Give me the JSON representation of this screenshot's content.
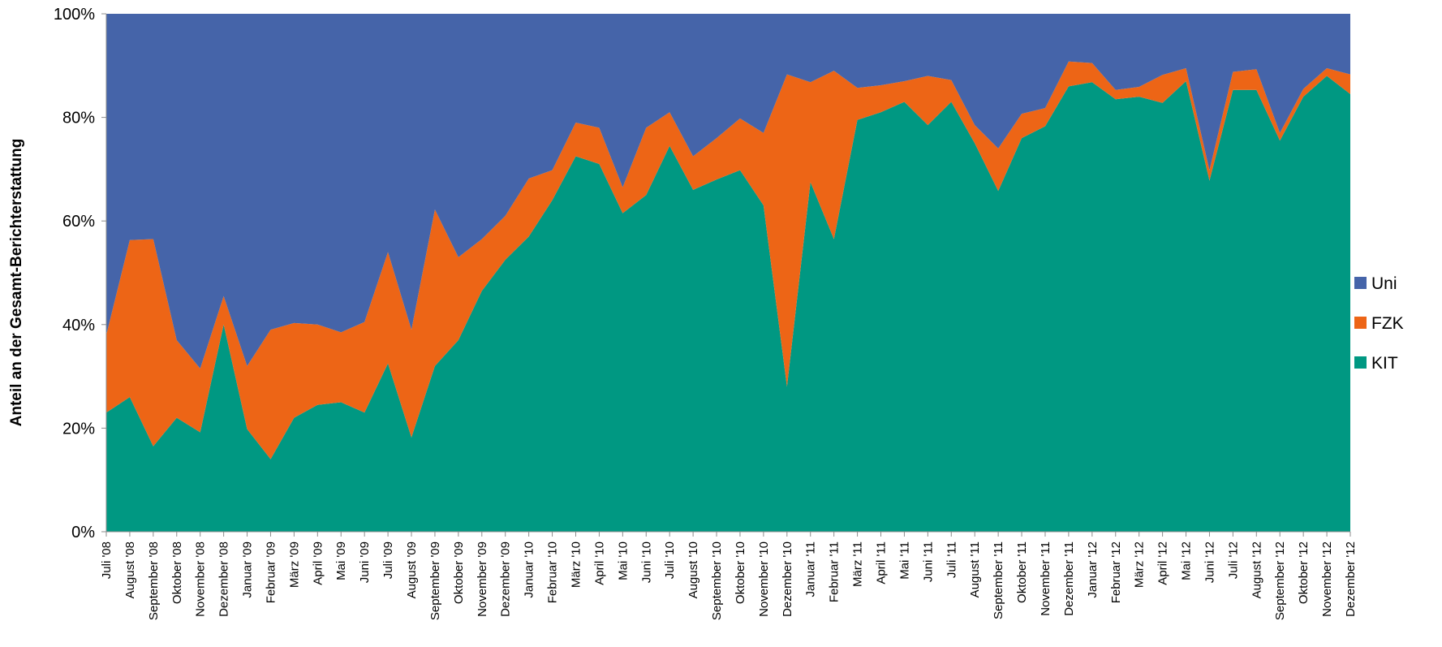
{
  "chart_data": {
    "type": "area",
    "stacked": "percent",
    "title": "",
    "xlabel": "",
    "ylabel": "Anteil an der Gesamt-Berichterstattung",
    "ylim": [
      0,
      100
    ],
    "yticks": [
      "0%",
      "20%",
      "40%",
      "60%",
      "80%",
      "100%"
    ],
    "legend_position": "right",
    "categories": [
      "Juli '08",
      "August '08",
      "September '08",
      "Oktober '08",
      "November '08",
      "Dezember '08",
      "Januar '09",
      "Februar '09",
      "März '09",
      "April '09",
      "Mai '09",
      "Juni '09",
      "Juli '09",
      "August '09",
      "September '09",
      "Oktober '09",
      "November '09",
      "Dezember '09",
      "Januar '10",
      "Februar '10",
      "März '10",
      "April '10",
      "Mai '10",
      "Juni '10",
      "Juli '10",
      "August '10",
      "September '10",
      "Oktober '10",
      "November '10",
      "Dezember '10",
      "Januar '11",
      "Februar '11",
      "März '11",
      "April '11",
      "Mai '11",
      "Juni '11",
      "Juli '11",
      "August '11",
      "September '11",
      "Oktober '11",
      "November '11",
      "Dezember '11",
      "Januar '12",
      "Februar '12",
      "März '12",
      "April '12",
      "Mai '12",
      "Juni '12",
      "Juli '12",
      "August '12",
      "September '12",
      "Oktober '12",
      "November '12",
      "Dezember '12"
    ],
    "series": [
      {
        "name": "KIT",
        "color": "#009882",
        "values": [
          23,
          26,
          16.5,
          22,
          19.2,
          40,
          19.8,
          14,
          22,
          24.5,
          25,
          23,
          32.5,
          18.2,
          32,
          37,
          46.5,
          52.5,
          57,
          64,
          72.5,
          71,
          61.5,
          65,
          74.5,
          66,
          68,
          69.8,
          63,
          28,
          67.5,
          56.5,
          79.5,
          81,
          83,
          78.5,
          83,
          75,
          65.8,
          76,
          78.3,
          86,
          86.8,
          83.5,
          84,
          82.8,
          87,
          67.8,
          85.3,
          85.3,
          75.5,
          84,
          88,
          84.5
        ]
      },
      {
        "name": "FZK",
        "color": "#ED6516",
        "values": [
          15,
          30.3,
          40,
          15,
          12.3,
          5.5,
          12.2,
          25,
          18.3,
          15.5,
          13.5,
          17.5,
          21.5,
          20.8,
          30.2,
          16,
          10,
          8.5,
          11.2,
          5.8,
          6.5,
          7,
          5,
          13,
          6.5,
          6.5,
          8,
          10,
          14,
          60.3,
          19.3,
          32.5,
          6.2,
          5.2,
          4,
          9.5,
          4.2,
          3.5,
          8.2,
          4.7,
          3.5,
          4.8,
          3.7,
          1.8,
          1.9,
          5.4,
          2.5,
          2,
          3.5,
          4,
          1.5,
          1.5,
          1.5,
          3.8
        ]
      },
      {
        "name": "Uni",
        "color": "#4564A9",
        "values": [
          62,
          43.7,
          43.5,
          63,
          68.5,
          54.5,
          68,
          61,
          59.7,
          60,
          61.5,
          59.5,
          46,
          61,
          37.8,
          47,
          43.5,
          39,
          31.8,
          30.2,
          21,
          22,
          33.5,
          22,
          19,
          27.5,
          24,
          20.2,
          23,
          11.7,
          13.2,
          11,
          14.3,
          13.8,
          13,
          12,
          12.8,
          21.5,
          26,
          19.3,
          18.2,
          9.2,
          9.5,
          14.7,
          14.1,
          11.8,
          10.5,
          30.2,
          11.2,
          10.7,
          23,
          14.5,
          10.5,
          11.7
        ]
      }
    ]
  }
}
